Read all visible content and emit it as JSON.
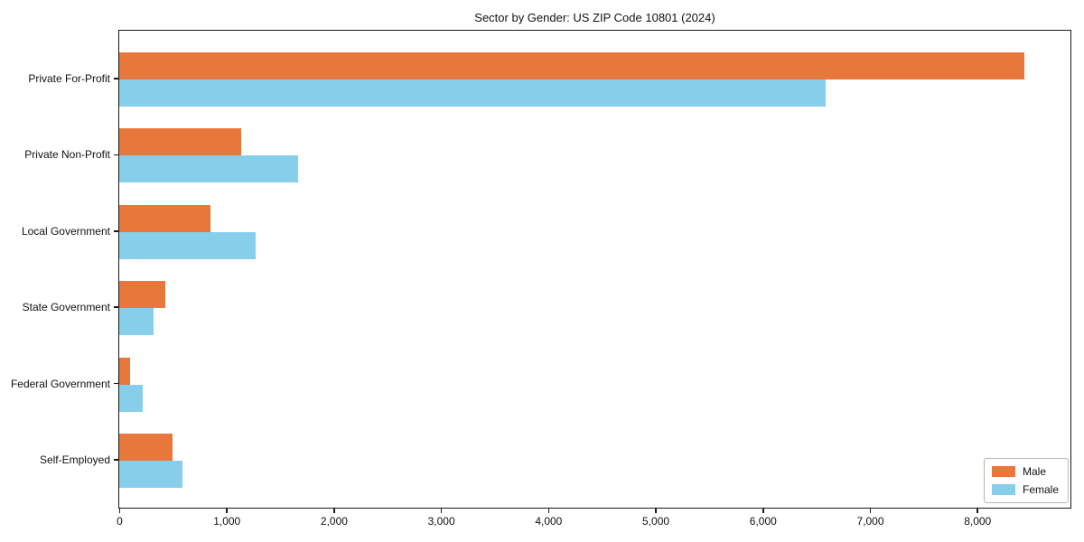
{
  "chart_data": {
    "type": "bar",
    "orientation": "horizontal",
    "title": "Sector by Gender: US ZIP Code 10801 (2024)",
    "categories": [
      "Private For-Profit",
      "Private Non-Profit",
      "Local Government",
      "State Government",
      "Federal Government",
      "Self-Employed"
    ],
    "series": [
      {
        "name": "Male",
        "color": "#e8773c",
        "values": [
          8440,
          1140,
          850,
          430,
          100,
          500
        ]
      },
      {
        "name": "Female",
        "color": "#87ceeb",
        "values": [
          6590,
          1670,
          1270,
          320,
          220,
          590
        ]
      }
    ],
    "xlim": [
      0,
      8870
    ],
    "x_ticks": [
      0,
      1000,
      2000,
      3000,
      4000,
      5000,
      6000,
      7000,
      8000
    ],
    "x_tick_labels": [
      "0",
      "1,000",
      "2,000",
      "3,000",
      "4,000",
      "5,000",
      "6,000",
      "7,000",
      "8,000"
    ],
    "xlabel": "",
    "ylabel": "",
    "grid": false,
    "legend_position": "lower right"
  }
}
